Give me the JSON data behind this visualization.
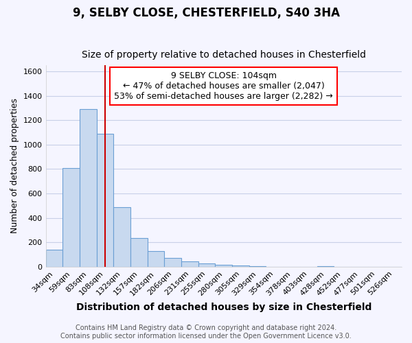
{
  "title1": "9, SELBY CLOSE, CHESTERFIELD, S40 3HA",
  "title2": "Size of property relative to detached houses in Chesterfield",
  "xlabel": "Distribution of detached houses by size in Chesterfield",
  "ylabel": "Number of detached properties",
  "categories": [
    "34sqm",
    "59sqm",
    "83sqm",
    "108sqm",
    "132sqm",
    "157sqm",
    "182sqm",
    "206sqm",
    "231sqm",
    "255sqm",
    "280sqm",
    "305sqm",
    "329sqm",
    "354sqm",
    "378sqm",
    "403sqm",
    "428sqm",
    "452sqm",
    "477sqm",
    "501sqm",
    "526sqm"
  ],
  "values": [
    140,
    810,
    1290,
    1090,
    490,
    235,
    130,
    70,
    45,
    25,
    15,
    8,
    5,
    0,
    0,
    0,
    2,
    0,
    0,
    0,
    0
  ],
  "bar_color": "#c8d9ef",
  "bar_edge_color": "#6b9fd4",
  "property_line_x": 3.0,
  "property_line_color": "#cc0000",
  "annotation_text": "9 SELBY CLOSE: 104sqm\n← 47% of detached houses are smaller (2,047)\n53% of semi-detached houses are larger (2,282) →",
  "ylim": [
    0,
    1650
  ],
  "yticks": [
    0,
    200,
    400,
    600,
    800,
    1000,
    1200,
    1400,
    1600
  ],
  "footer1": "Contains HM Land Registry data © Crown copyright and database right 2024.",
  "footer2": "Contains public sector information licensed under the Open Government Licence v3.0.",
  "bg_color": "#f5f5ff",
  "grid_color": "#c8d0e8",
  "title1_fontsize": 12,
  "title2_fontsize": 10,
  "xlabel_fontsize": 10,
  "ylabel_fontsize": 9,
  "tick_fontsize": 8,
  "annotation_fontsize": 9,
  "footer_fontsize": 7
}
